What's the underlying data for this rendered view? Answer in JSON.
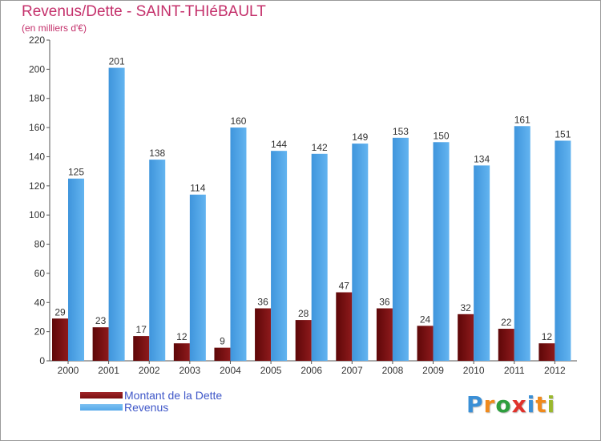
{
  "title": "Revenus/Dette - SAINT-THIéBAULT",
  "subtitle": "(en milliers d'€)",
  "colors": {
    "debt": "#7a0e10",
    "revenue": "#55a8ea",
    "title": "#c4306b",
    "legend_text": "#3f57c8"
  },
  "chart_data": {
    "type": "bar",
    "title": "Revenus/Dette - SAINT-THIéBAULT",
    "subtitle": "(en milliers d'€)",
    "categories": [
      "2000",
      "2001",
      "2002",
      "2003",
      "2004",
      "2005",
      "2006",
      "2007",
      "2008",
      "2009",
      "2010",
      "2011",
      "2012"
    ],
    "series": [
      {
        "name": "Montant de la Dette",
        "values": [
          29,
          23,
          17,
          12,
          9,
          36,
          28,
          47,
          36,
          24,
          32,
          22,
          12
        ]
      },
      {
        "name": "Revenus",
        "values": [
          125,
          201,
          138,
          114,
          160,
          144,
          142,
          149,
          153,
          150,
          134,
          161,
          151
        ]
      }
    ],
    "ylim": [
      0,
      220
    ],
    "yticks": [
      0,
      20,
      40,
      60,
      80,
      100,
      120,
      140,
      160,
      180,
      200,
      220
    ],
    "grid": false,
    "legend_position": "bottom-left"
  },
  "legend": [
    {
      "label": "Montant de la Dette",
      "color": "#7a0e10"
    },
    {
      "label": "Revenus",
      "color": "#55a8ea"
    }
  ],
  "logo": {
    "letters": [
      "P",
      "r",
      "o",
      "x",
      "i",
      "t",
      "i"
    ],
    "colors": [
      "#3a8fd6",
      "#f08a1c",
      "#2e9e3e",
      "#e0322c",
      "#3a8fd6",
      "#f08a1c",
      "#9ab82c"
    ]
  }
}
